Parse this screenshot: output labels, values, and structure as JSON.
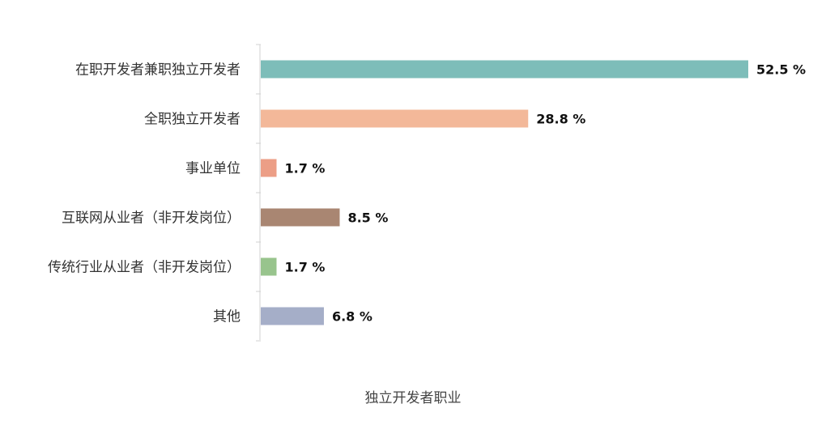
{
  "chart_data": {
    "type": "bar",
    "orientation": "horizontal",
    "title": "独立开发者职业",
    "xlabel": "",
    "ylabel": "",
    "xlim": [
      0,
      52.5
    ],
    "grid": false,
    "legend": "none",
    "value_suffix": " %",
    "categories": [
      "在职开发者兼职独立开发者",
      "全职独立开发者",
      "事业单位",
      "互联网从业者（非开发岗位）",
      "传统行业从业者（非开发岗位）",
      "其他"
    ],
    "values": [
      52.5,
      28.8,
      1.7,
      8.5,
      1.7,
      6.8
    ],
    "colors": [
      "#7dbdb9",
      "#f3b899",
      "#ec9e86",
      "#a98672",
      "#98c48d",
      "#a5aec8"
    ]
  }
}
